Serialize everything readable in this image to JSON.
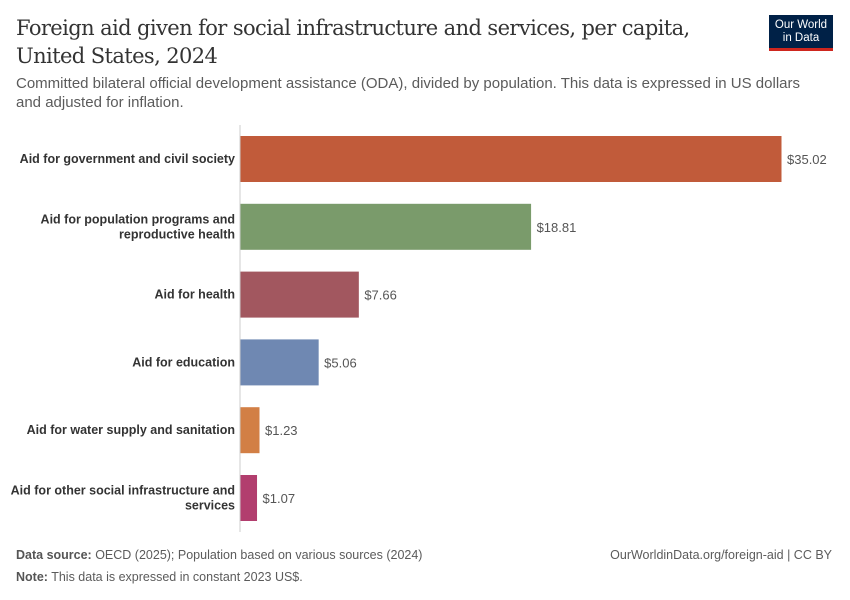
{
  "header": {
    "title": "Foreign aid given for social infrastructure and services, per capita, United States, 2024",
    "subtitle": "Committed bilateral official development assistance (ODA), divided by population. This data is expressed in US dollars and adjusted for inflation.",
    "logo": "Our World in Data"
  },
  "chart_data": {
    "type": "bar",
    "orientation": "horizontal",
    "title": "Foreign aid given for social infrastructure and services, per capita, United States, 2024",
    "categories": [
      [
        "Aid for government and civil society"
      ],
      [
        "Aid for population programs and",
        "reproductive health"
      ],
      [
        "Aid for health"
      ],
      [
        "Aid for education"
      ],
      [
        "Aid for water supply and sanitation"
      ],
      [
        "Aid for other social infrastructure and",
        "services"
      ]
    ],
    "values": [
      35.02,
      18.81,
      7.66,
      5.06,
      1.23,
      1.07
    ],
    "value_labels": [
      "$35.02",
      "$18.81",
      "$7.66",
      "$5.06",
      "$1.23",
      "$1.07"
    ],
    "colors": [
      "#C15B3A",
      "#7A9B6B",
      "#A2575F",
      "#6F88B2",
      "#D27F45",
      "#B23E6E"
    ],
    "xlim": [
      0,
      35.02
    ],
    "grid": false
  },
  "footer": {
    "source_label": "Data source:",
    "source": " OECD (2025); Population based on various sources (2024)",
    "note_label": "Note:",
    "note": " This data is expressed in constant 2023 US$.",
    "url": "OurWorldinData.org/foreign-aid | CC BY"
  }
}
